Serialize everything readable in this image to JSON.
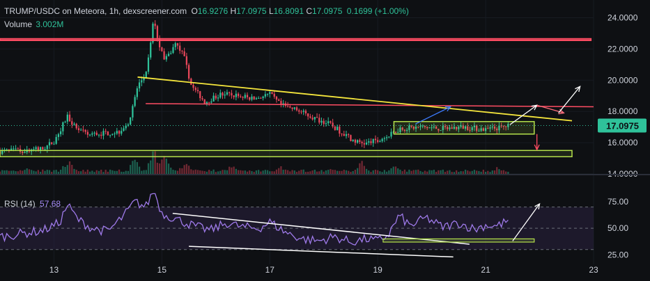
{
  "header": {
    "symbol": "TRUMP/USDC on Meteora, 1h, dexscreener.com",
    "open_label": "O",
    "open": "16.9276",
    "high_label": "H",
    "high": "17.0975",
    "low_label": "L",
    "low": "16.8091",
    "close_label": "C",
    "close": "17.0975",
    "change": "0.1699 (+1.00%)",
    "volume_label": "Volume",
    "volume": "3.002M"
  },
  "rsi": {
    "label": "RSI (14)",
    "value": "57.68"
  },
  "last_price": "17.0975",
  "colors": {
    "background": "#0e1013",
    "up": "#2fc29a",
    "down": "#e8475a",
    "rsi_line": "#9f7aea",
    "rsi_band": "#2a2140",
    "support": "#b4e14b",
    "resistance": "#ff4d63",
    "trendline": "#f5e63c",
    "last_price": "#2fc29a"
  },
  "chart_data": [
    {
      "type": "candlestick",
      "title": "TRUMP/USDC on Meteora, 1h, dexscreener.com",
      "x_ticks": [
        "13",
        "15",
        "17",
        "19",
        "21",
        "23"
      ],
      "x_tick_values": [
        13,
        15,
        17,
        19,
        21,
        23
      ],
      "xlim": [
        12,
        23
      ],
      "y_ticks": [
        "14.0000",
        "16.0000",
        "18.0000",
        "20.0000",
        "22.0000",
        "24.0000"
      ],
      "y_tick_values": [
        14,
        16,
        18,
        20,
        22,
        24
      ],
      "ylim": [
        14,
        24.6
      ],
      "price_path": [
        [
          12.0,
          15.45
        ],
        [
          12.5,
          15.5
        ],
        [
          12.8,
          15.6
        ],
        [
          13.0,
          16.1
        ],
        [
          13.25,
          17.7
        ],
        [
          13.4,
          17.0
        ],
        [
          13.6,
          16.5
        ],
        [
          13.9,
          16.6
        ],
        [
          14.2,
          16.7
        ],
        [
          14.4,
          17.4
        ],
        [
          14.55,
          19.6
        ],
        [
          14.72,
          20.5
        ],
        [
          14.85,
          24.0
        ],
        [
          14.93,
          22.6
        ],
        [
          15.05,
          21.2
        ],
        [
          15.25,
          22.3
        ],
        [
          15.4,
          21.6
        ],
        [
          15.55,
          19.6
        ],
        [
          15.8,
          18.6
        ],
        [
          16.1,
          19.1
        ],
        [
          16.4,
          19.0
        ],
        [
          16.7,
          18.8
        ],
        [
          17.0,
          19.1
        ],
        [
          17.2,
          18.4
        ],
        [
          17.5,
          18.1
        ],
        [
          17.8,
          17.6
        ],
        [
          18.1,
          17.2
        ],
        [
          18.4,
          16.5
        ],
        [
          18.6,
          16.05
        ],
        [
          18.8,
          15.95
        ],
        [
          19.0,
          16.2
        ],
        [
          19.2,
          16.4
        ],
        [
          19.4,
          16.9
        ],
        [
          19.8,
          17.0
        ],
        [
          20.2,
          16.9
        ],
        [
          20.6,
          17.0
        ],
        [
          21.0,
          16.85
        ],
        [
          21.25,
          16.95
        ],
        [
          21.45,
          17.0975
        ]
      ],
      "volume": {
        "label": "Volume",
        "value": "3.002M",
        "spikes": [
          [
            12.5,
            0.25
          ],
          [
            13.25,
            0.55
          ],
          [
            14.5,
            0.6
          ],
          [
            14.85,
            1.0
          ],
          [
            15.05,
            0.7
          ],
          [
            15.45,
            0.55
          ],
          [
            16.3,
            0.35
          ],
          [
            17.2,
            0.3
          ],
          [
            18.1,
            0.25
          ],
          [
            18.7,
            0.45
          ],
          [
            19.3,
            0.35
          ],
          [
            21.2,
            0.25
          ]
        ]
      },
      "annotations": {
        "resistance_zone": [
          22.55,
          22.65
        ],
        "resistance_line": {
          "from": [
            14.7,
            18.5
          ],
          "to": [
            23,
            18.3
          ]
        },
        "trendline": {
          "from": [
            14.55,
            20.2
          ],
          "to": [
            22.6,
            17.4
          ]
        },
        "consolidation_box": {
          "x": [
            19.3,
            21.9
          ],
          "y": [
            16.55,
            17.35
          ]
        },
        "support_zone": {
          "x": [
            12,
            22.6
          ],
          "y": [
            15.1,
            15.5
          ]
        },
        "arrows": [
          {
            "from": [
              19.7,
              17.2
            ],
            "to": [
              20.35,
              18.3
            ],
            "color": "#3d7bfd"
          },
          {
            "from": [
              21.45,
              17.15
            ],
            "to": [
              21.95,
              18.4
            ],
            "color": "#ffffff"
          },
          {
            "from": [
              21.95,
              18.4
            ],
            "to": [
              22.45,
              17.9
            ],
            "color": "#ff6f7d"
          },
          {
            "from": [
              22.35,
              17.9
            ],
            "to": [
              22.75,
              19.6
            ],
            "color": "#ffffff"
          },
          {
            "from": [
              21.95,
              16.55
            ],
            "to": [
              21.95,
              15.55
            ],
            "color": "#ff4d63"
          }
        ]
      },
      "last_price": 17.0975
    },
    {
      "type": "line",
      "title": "RSI (14)",
      "value": "57.68",
      "y_ticks": [
        "25.00",
        "50.00",
        "75.00"
      ],
      "y_tick_values": [
        25,
        50,
        75
      ],
      "ylim": [
        20,
        92
      ],
      "bands": [
        30,
        50,
        70
      ],
      "x": [
        12.0,
        12.4,
        12.8,
        13.1,
        13.25,
        13.45,
        13.7,
        14.0,
        14.3,
        14.5,
        14.7,
        14.85,
        15.0,
        15.3,
        15.6,
        15.9,
        16.2,
        16.5,
        16.8,
        17.0,
        17.3,
        17.6,
        17.9,
        18.2,
        18.5,
        18.8,
        19.0,
        19.2,
        19.4,
        19.6,
        19.9,
        20.2,
        20.5,
        20.8,
        21.0,
        21.2,
        21.45
      ],
      "y": [
        42,
        45,
        48,
        55,
        72,
        58,
        50,
        47,
        62,
        75,
        70,
        86,
        64,
        58,
        52,
        48,
        55,
        51,
        50,
        56,
        46,
        40,
        38,
        42,
        37,
        40,
        38,
        44,
        62,
        52,
        60,
        51,
        55,
        49,
        53,
        52,
        57.68
      ],
      "annotations": {
        "upper_trend": {
          "from": [
            15.2,
            64
          ],
          "to": [
            20.7,
            35
          ]
        },
        "lower_trend": {
          "from": [
            15.5,
            33
          ],
          "to": [
            20.4,
            23
          ]
        },
        "support_box": {
          "x": [
            19.1,
            21.9
          ],
          "y": [
            37,
            40
          ]
        },
        "arrow": {
          "from": [
            21.5,
            38
          ],
          "to": [
            22.0,
            73
          ]
        }
      }
    }
  ]
}
